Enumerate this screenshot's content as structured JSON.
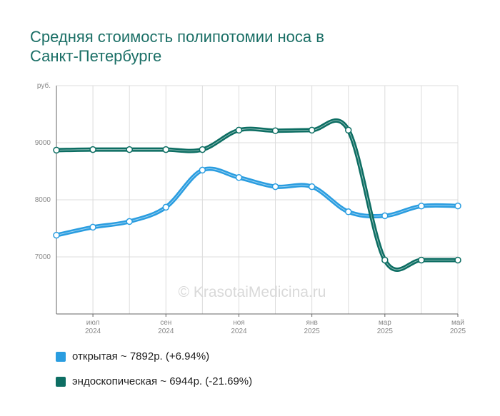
{
  "title_lines": [
    "Средняя стоимость полипотомии носа в",
    "Санкт-Петербурге"
  ],
  "watermark": "© KrasotaiMedicina.ru",
  "chart_data": {
    "type": "line",
    "title": "Средняя стоимость полипотомии носа в Санкт-Петербурге",
    "ylabel": "руб.",
    "ylim": [
      6000,
      10000
    ],
    "y_ticks": [
      {
        "value": 7000,
        "label": "7000"
      },
      {
        "value": 8000,
        "label": "8000"
      },
      {
        "value": 9000,
        "label": "9000"
      },
      {
        "value": 10000,
        "label": "руб."
      }
    ],
    "x_ticks": [
      {
        "month": 1,
        "line1": "июл",
        "line2": "2024"
      },
      {
        "month": 3,
        "line1": "сен",
        "line2": "2024"
      },
      {
        "month": 5,
        "line1": "ноя",
        "line2": "2024"
      },
      {
        "month": 7,
        "line1": "янв",
        "line2": "2025"
      },
      {
        "month": 9,
        "line1": "мар",
        "line2": "2025"
      },
      {
        "month": 11,
        "line1": "май",
        "line2": "2025"
      }
    ],
    "x_months": [
      "июн 2024",
      "июл 2024",
      "авг 2024",
      "сен 2024",
      "окт 2024",
      "ноя 2024",
      "дек 2024",
      "янв 2025",
      "фев 2025",
      "мар 2025",
      "апр 2025",
      "май 2025"
    ],
    "grid": true,
    "legend_position": "bottom",
    "series": [
      {
        "name": "открытая",
        "color": "#2a9de0",
        "values": [
          7380,
          7520,
          7620,
          7870,
          8520,
          8390,
          8230,
          8230,
          7790,
          7720,
          7890,
          7892
        ]
      },
      {
        "name": "эндоскопическая",
        "color": "#0d6e63",
        "values": [
          8870,
          8880,
          8880,
          8880,
          8880,
          9220,
          9210,
          9220,
          9220,
          6944,
          6944,
          6944
        ]
      }
    ]
  },
  "legend": [
    {
      "label": "открытая ~ 7892р. (+6.94%)",
      "color": "#2a9de0"
    },
    {
      "label": "эндоскопическая ~ 6944р. (-21.69%)",
      "color": "#0d6e63"
    }
  ]
}
